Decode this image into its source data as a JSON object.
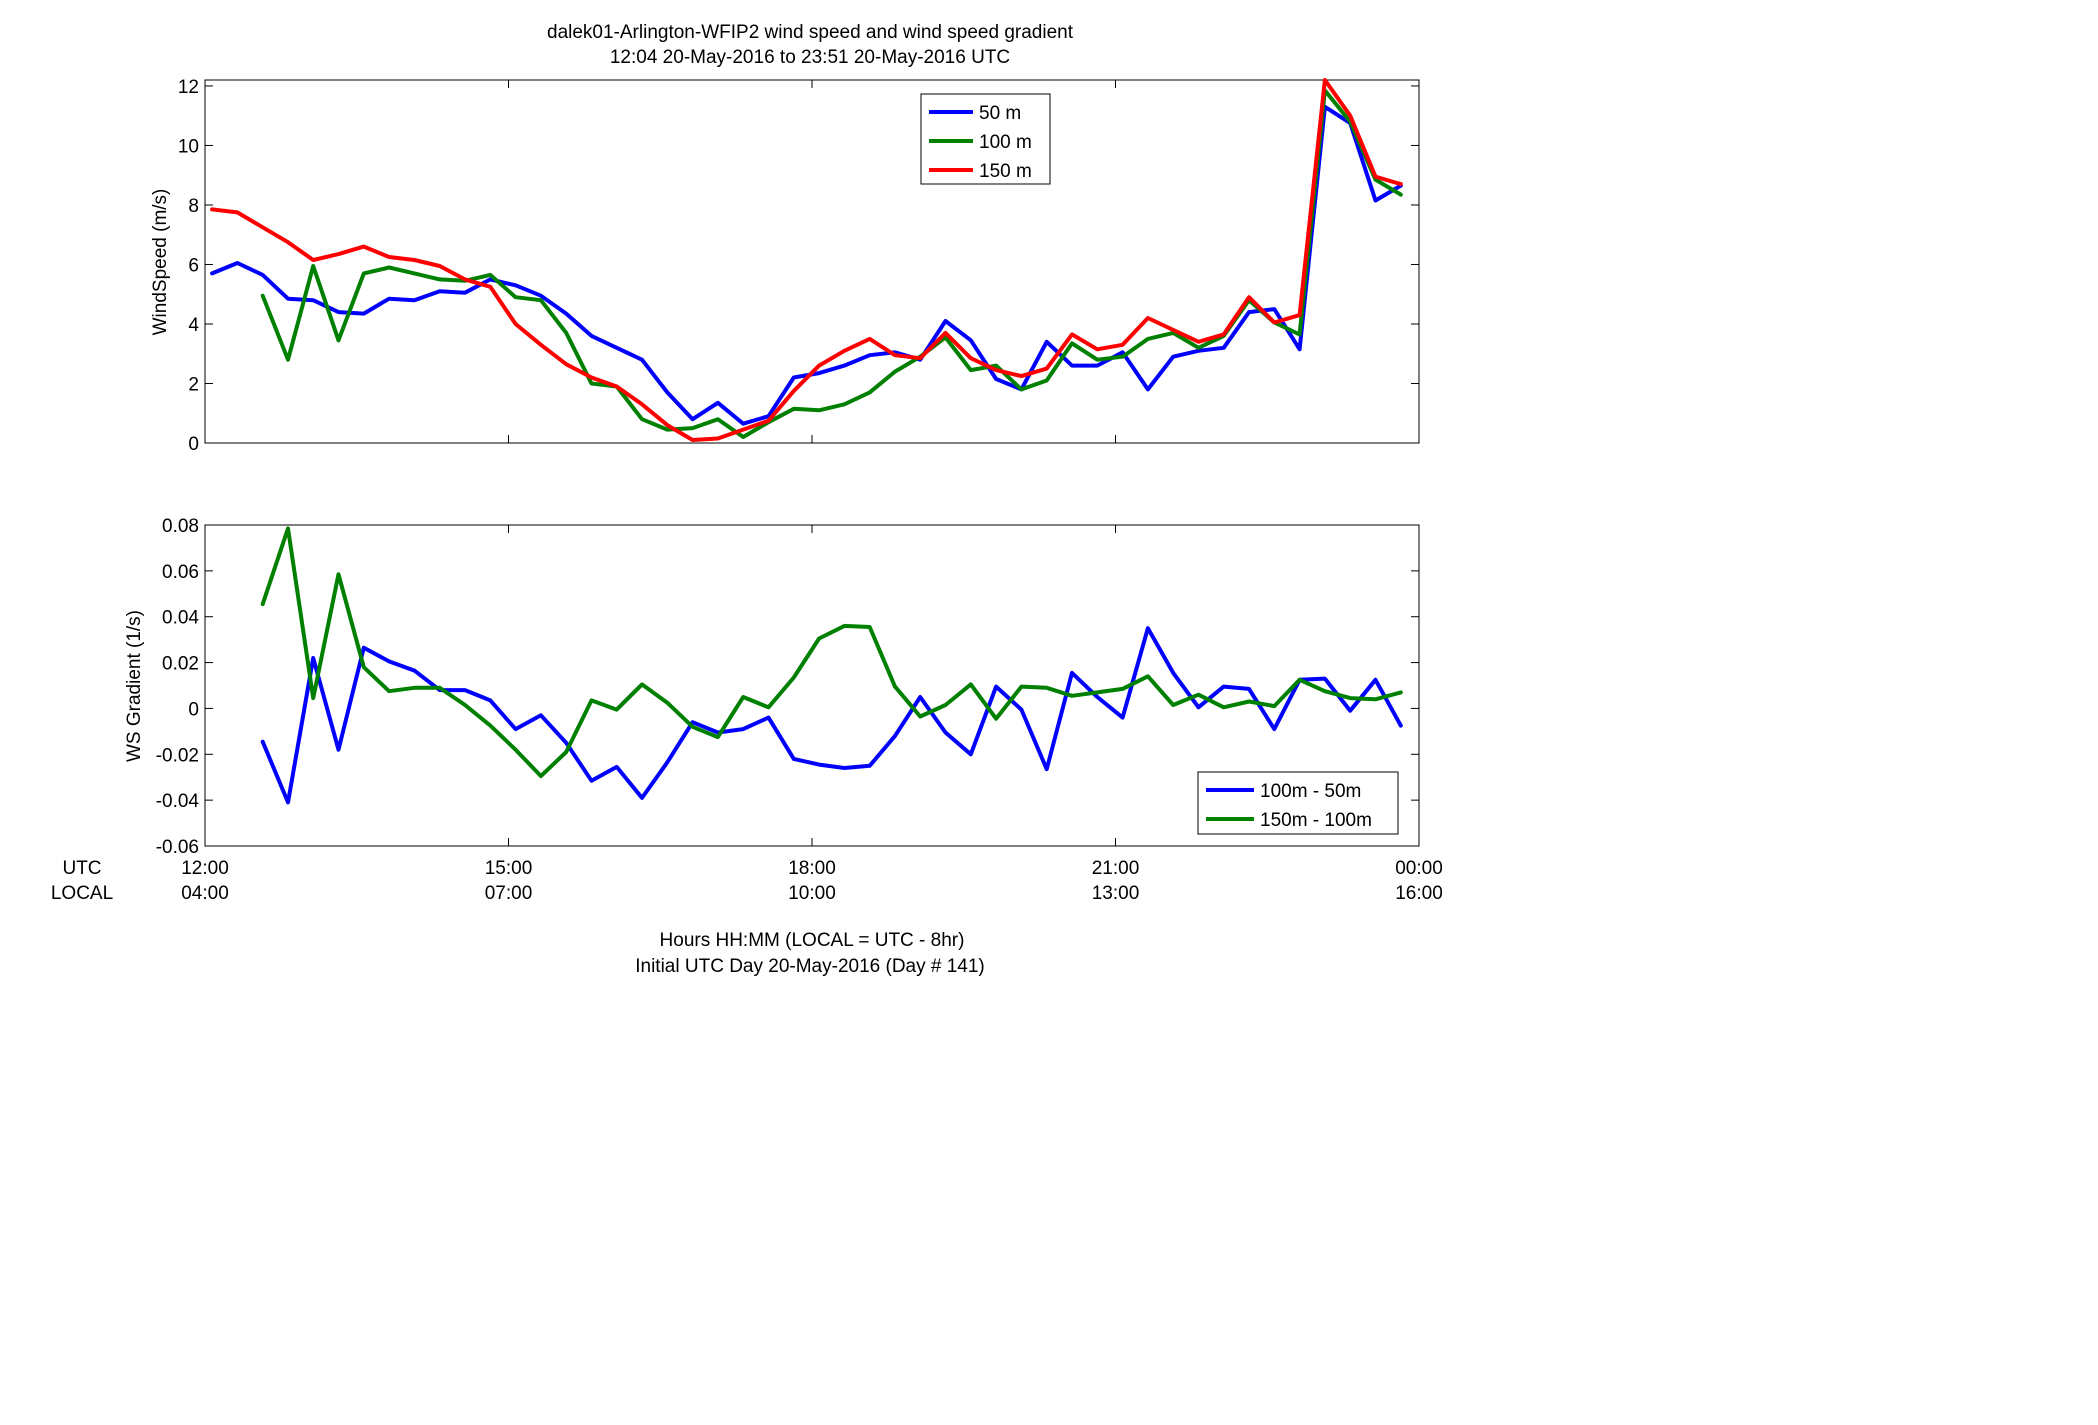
{
  "figure": {
    "title_line1": "dalek01-Arlington-WFIP2  wind speed and wind speed gradient",
    "title_line2": "12:04 20-May-2016 to 23:51 20-May-2016  UTC",
    "xlabel_line1": "Hours HH:MM  (LOCAL = UTC - 8hr)",
    "xlabel_line2": "Initial UTC Day 20-May-2016 (Day # 141)",
    "row_label_utc": "UTC",
    "row_label_local": "LOCAL"
  },
  "chart_data": [
    {
      "type": "line",
      "title": "",
      "ylabel": "WindSpeed (m/s)",
      "xlabel": "",
      "xlim": [
        12.0,
        24.0
      ],
      "ylim": [
        0,
        12.2
      ],
      "yticks": [
        0,
        2,
        4,
        6,
        8,
        10,
        12
      ],
      "ytick_labels": [
        "0",
        "2",
        "4",
        "6",
        "8",
        "10",
        "12"
      ],
      "xticks": [
        12,
        15,
        18,
        21,
        24
      ],
      "grid": false,
      "legend_position": "top-right",
      "series": [
        {
          "name": "50 m",
          "color": "#0000ff",
          "x": [
            12.07,
            12.32,
            12.57,
            12.82,
            13.07,
            13.32,
            13.57,
            13.82,
            14.07,
            14.32,
            14.57,
            14.82,
            15.07,
            15.32,
            15.57,
            15.82,
            16.07,
            16.32,
            16.57,
            16.82,
            17.07,
            17.32,
            17.57,
            17.82,
            18.07,
            18.32,
            18.57,
            18.82,
            19.07,
            19.32,
            19.57,
            19.82,
            20.07,
            20.32,
            20.57,
            20.82,
            21.07,
            21.32,
            21.57,
            21.82,
            22.07,
            22.32,
            22.57,
            22.82,
            23.07,
            23.32,
            23.57,
            23.82
          ],
          "y": [
            5.7,
            6.05,
            5.65,
            4.85,
            4.8,
            4.4,
            4.35,
            4.85,
            4.8,
            5.1,
            5.05,
            5.5,
            5.3,
            4.95,
            4.35,
            3.6,
            3.2,
            2.8,
            1.7,
            0.8,
            1.35,
            0.65,
            0.9,
            2.2,
            2.35,
            2.6,
            2.95,
            3.05,
            2.8,
            4.1,
            3.45,
            2.15,
            1.8,
            3.4,
            2.6,
            2.6,
            3.05,
            1.8,
            2.9,
            3.1,
            3.2,
            4.4,
            4.5,
            3.15,
            11.3,
            10.75,
            8.15,
            8.65
          ]
        },
        {
          "name": "100 m",
          "color": "#008000",
          "x": [
            12.57,
            12.82,
            13.07,
            13.32,
            13.57,
            13.82,
            14.07,
            14.32,
            14.57,
            14.82,
            15.07,
            15.32,
            15.57,
            15.82,
            16.07,
            16.32,
            16.57,
            16.82,
            17.07,
            17.32,
            17.57,
            17.82,
            18.07,
            18.32,
            18.57,
            18.82,
            19.07,
            19.32,
            19.57,
            19.82,
            20.07,
            20.32,
            20.57,
            20.82,
            21.07,
            21.32,
            21.57,
            21.82,
            22.07,
            22.32,
            22.57,
            22.82,
            23.07,
            23.32,
            23.57,
            23.82
          ],
          "y": [
            4.95,
            2.8,
            5.95,
            3.45,
            5.7,
            5.9,
            5.7,
            5.5,
            5.45,
            5.65,
            4.9,
            4.8,
            3.7,
            2.0,
            1.9,
            0.8,
            0.45,
            0.5,
            0.8,
            0.2,
            0.7,
            1.15,
            1.1,
            1.3,
            1.7,
            2.4,
            2.9,
            3.55,
            2.45,
            2.6,
            1.8,
            2.1,
            3.35,
            2.8,
            2.9,
            3.5,
            3.7,
            3.2,
            3.6,
            4.8,
            4.05,
            3.65,
            11.85,
            10.8,
            8.85,
            8.35
          ]
        },
        {
          "name": "150 m",
          "color": "#ff0000",
          "x": [
            12.07,
            12.32,
            12.57,
            12.82,
            13.07,
            13.32,
            13.57,
            13.82,
            14.07,
            14.32,
            14.57,
            14.82,
            15.07,
            15.32,
            15.57,
            15.82,
            16.07,
            16.32,
            16.57,
            16.82,
            17.07,
            17.32,
            17.57,
            17.82,
            18.07,
            18.32,
            18.57,
            18.82,
            19.07,
            19.32,
            19.57,
            19.82,
            20.07,
            20.32,
            20.57,
            20.82,
            21.07,
            21.32,
            21.57,
            21.82,
            22.07,
            22.32,
            22.57,
            22.82,
            23.07,
            23.32,
            23.57,
            23.82
          ],
          "y": [
            7.85,
            7.75,
            7.25,
            6.75,
            6.15,
            6.35,
            6.6,
            6.25,
            6.15,
            5.95,
            5.5,
            5.25,
            4.0,
            3.3,
            2.65,
            2.2,
            1.9,
            1.3,
            0.6,
            0.1,
            0.15,
            0.45,
            0.75,
            1.75,
            2.6,
            3.1,
            3.5,
            2.95,
            2.85,
            3.7,
            2.85,
            2.45,
            2.25,
            2.5,
            3.65,
            3.15,
            3.3,
            4.2,
            3.8,
            3.4,
            3.65,
            4.9,
            4.05,
            4.3,
            12.2,
            11.0,
            8.95,
            8.7
          ]
        }
      ]
    },
    {
      "type": "line",
      "title": "",
      "ylabel": "WS Gradient (1/s)",
      "xlabel": "",
      "xlim": [
        12.0,
        24.0
      ],
      "ylim": [
        -0.06,
        0.08
      ],
      "yticks": [
        -0.06,
        -0.04,
        -0.02,
        0,
        0.02,
        0.04,
        0.06,
        0.08
      ],
      "ytick_labels": [
        "-0.06",
        "-0.04",
        "-0.02",
        "0",
        "0.02",
        "0.04",
        "0.06",
        "0.08"
      ],
      "xticks": [
        12,
        15,
        18,
        21,
        24
      ],
      "xtick_labels_utc": [
        "12:00",
        "15:00",
        "18:00",
        "21:00",
        "00:00"
      ],
      "xtick_labels_local": [
        "04:00",
        "07:00",
        "10:00",
        "13:00",
        "16:00"
      ],
      "grid": false,
      "legend_position": "bottom-right",
      "series": [
        {
          "name": "100m - 50m",
          "color": "#0000ff",
          "x": [
            12.57,
            12.82,
            13.07,
            13.32,
            13.57,
            13.82,
            14.07,
            14.32,
            14.57,
            14.82,
            15.07,
            15.32,
            15.57,
            15.82,
            16.07,
            16.32,
            16.57,
            16.82,
            17.07,
            17.32,
            17.57,
            17.82,
            18.07,
            18.32,
            18.57,
            18.82,
            19.07,
            19.32,
            19.57,
            19.82,
            20.07,
            20.32,
            20.57,
            20.82,
            21.07,
            21.32,
            21.57,
            21.82,
            22.07,
            22.32,
            22.57,
            22.82,
            23.07,
            23.32,
            23.57,
            23.82
          ],
          "y": [
            -0.0145,
            -0.041,
            0.022,
            -0.018,
            0.0265,
            0.0205,
            0.0165,
            0.008,
            0.008,
            0.0035,
            -0.009,
            -0.003,
            -0.015,
            -0.0315,
            -0.0255,
            -0.039,
            -0.0235,
            -0.006,
            -0.0105,
            -0.009,
            -0.004,
            -0.022,
            -0.0245,
            -0.026,
            -0.025,
            -0.012,
            0.005,
            -0.0105,
            -0.02,
            0.0095,
            -0.0005,
            -0.0265,
            0.0155,
            0.005,
            -0.004,
            0.035,
            0.0155,
            0.0005,
            0.0095,
            0.0085,
            -0.009,
            0.0125,
            0.013,
            -0.001,
            0.0125,
            -0.0075
          ]
        },
        {
          "name": "150m - 100m",
          "color": "#008000",
          "x": [
            12.57,
            12.82,
            13.07,
            13.32,
            13.57,
            13.82,
            14.07,
            14.32,
            14.57,
            14.82,
            15.07,
            15.32,
            15.57,
            15.82,
            16.07,
            16.32,
            16.57,
            16.82,
            17.07,
            17.32,
            17.57,
            17.82,
            18.07,
            18.32,
            18.57,
            18.82,
            19.07,
            19.32,
            19.57,
            19.82,
            20.07,
            20.32,
            20.57,
            20.82,
            21.07,
            21.32,
            21.57,
            21.82,
            22.07,
            22.32,
            22.57,
            22.82,
            23.07,
            23.32,
            23.57,
            23.82
          ],
          "y": [
            0.0455,
            0.0785,
            0.0045,
            0.0585,
            0.018,
            0.0075,
            0.009,
            0.009,
            0.0015,
            -0.0075,
            -0.018,
            -0.0295,
            -0.019,
            0.0035,
            -0.0005,
            0.0105,
            0.0025,
            -0.008,
            -0.0125,
            0.005,
            0.0005,
            0.0135,
            0.0305,
            0.036,
            0.0355,
            0.0095,
            -0.0035,
            0.0015,
            0.0105,
            -0.0045,
            0.0095,
            0.009,
            0.0055,
            0.007,
            0.0085,
            0.014,
            0.0015,
            0.006,
            0.0005,
            0.003,
            0.001,
            0.0125,
            0.0075,
            0.0045,
            0.004,
            0.007
          ]
        }
      ]
    }
  ]
}
